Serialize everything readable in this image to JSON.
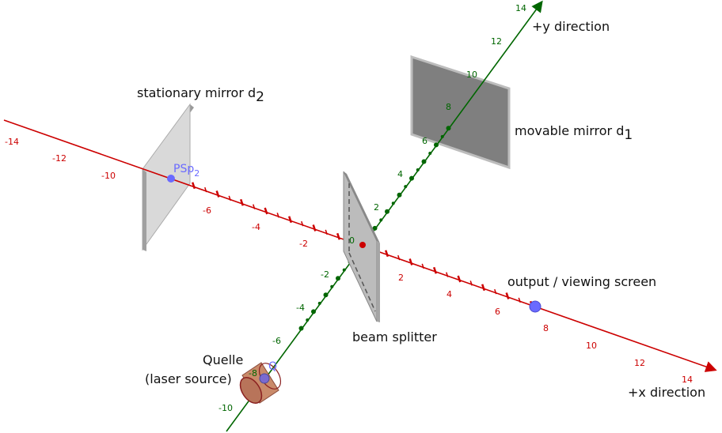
{
  "labels": {
    "stationary_mirror": "stationary mirror d",
    "stationary_mirror_sub": "2",
    "movable_mirror": "movable mirror d",
    "movable_mirror_sub": "1",
    "beam_splitter": "beam splitter",
    "output_screen": "output / viewing screen",
    "source_line1": "Quelle",
    "source_line2": "(laser source)",
    "x_direction": "+x direction",
    "y_direction": "+y direction",
    "psp": "PSp",
    "psp_sub": "2",
    "q_point": "Q",
    "origin": "0"
  },
  "x_axis": {
    "ticks": [
      "-14",
      "-12",
      "-10",
      "-6",
      "-4",
      "-2",
      "2",
      "4",
      "6",
      "8",
      "10",
      "12",
      "14"
    ]
  },
  "y_axis": {
    "ticks": [
      "-10",
      "-8",
      "-6",
      "-4",
      "-2",
      "2",
      "4",
      "6",
      "8",
      "10",
      "12",
      "14"
    ]
  },
  "colors": {
    "x_axis": "#cc0000",
    "y_axis": "#006600",
    "mirror_light": "#d6d6d6",
    "mirror_dark": "#7a7a7a",
    "point": "#6a6aff",
    "source_body": "#c98a6a"
  }
}
